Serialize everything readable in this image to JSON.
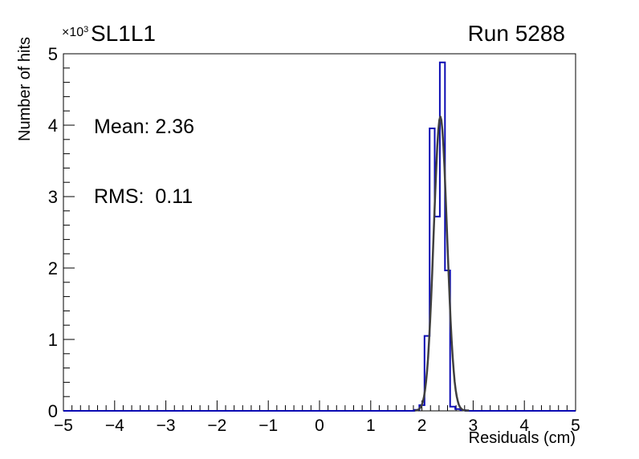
{
  "header": {
    "title": "SL1L1",
    "run_label": "Run 5288",
    "axis_multiplier": "×10",
    "axis_multiplier_exponent": "3"
  },
  "stats": {
    "mean_label": "Mean: 2.36",
    "rms_label": "RMS:  0.11"
  },
  "chart_data": {
    "type": "bar",
    "subtype": "histogram-with-gaussian-fit",
    "title": "SL1L1",
    "annotation": "Run 5288",
    "xlabel": "Residuals (cm)",
    "ylabel": "Number of hits",
    "y_axis_multiplier_text": "×10³",
    "xlim": [
      -5,
      5
    ],
    "ylim": [
      0,
      5000
    ],
    "grid": false,
    "legend": "none",
    "x_ticks": [
      {
        "value": -5,
        "label": "−5"
      },
      {
        "value": -4,
        "label": "−4"
      },
      {
        "value": -3,
        "label": "−3"
      },
      {
        "value": -2,
        "label": "−2"
      },
      {
        "value": -1,
        "label": "−1"
      },
      {
        "value": 0,
        "label": "0"
      },
      {
        "value": 1,
        "label": "1"
      },
      {
        "value": 2,
        "label": "2"
      },
      {
        "value": 3,
        "label": "3"
      },
      {
        "value": 4,
        "label": "4"
      },
      {
        "value": 5,
        "label": "5"
      }
    ],
    "x_minor_subdivisions": 6,
    "y_ticks": [
      {
        "value": 0,
        "label": "0"
      },
      {
        "value": 1000,
        "label": "1"
      },
      {
        "value": 2000,
        "label": "2"
      },
      {
        "value": 3000,
        "label": "3"
      },
      {
        "value": 4000,
        "label": "4"
      },
      {
        "value": 5000,
        "label": "5"
      }
    ],
    "y_minor_subdivisions": 5,
    "bin_width": 0.1,
    "bins": [
      {
        "center": 1.9,
        "count": 15
      },
      {
        "center": 2.0,
        "count": 80
      },
      {
        "center": 2.1,
        "count": 1050
      },
      {
        "center": 2.2,
        "count": 3955
      },
      {
        "center": 2.3,
        "count": 2720
      },
      {
        "center": 2.4,
        "count": 4880
      },
      {
        "center": 2.5,
        "count": 1966
      },
      {
        "center": 2.6,
        "count": 60
      },
      {
        "center": 2.7,
        "count": 25
      },
      {
        "center": 2.8,
        "count": 10
      }
    ],
    "fit": {
      "type": "gaussian",
      "amplitude": 4120,
      "mean": 2.36,
      "sigma": 0.13,
      "draw_range": [
        1.86,
        2.92
      ]
    },
    "displayed_stats": {
      "mean": 2.36,
      "rms": 0.11
    },
    "colors": {
      "histogram_line": "#0b0bb4",
      "fit_line": "#3f3f3f",
      "axis": "#000000",
      "background": "#ffffff"
    }
  }
}
